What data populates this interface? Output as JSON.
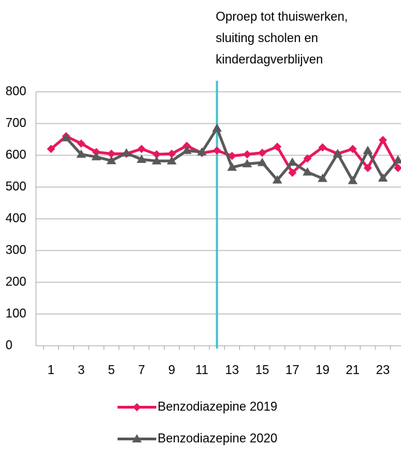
{
  "chart_data": {
    "type": "line",
    "annotation": {
      "lines": [
        "Oproep tot thuiswerken,",
        "sluiting scholen en",
        "kinderdagverblijven"
      ],
      "x": 12,
      "color": "#3fc1cf"
    },
    "x": [
      1,
      2,
      3,
      4,
      5,
      6,
      7,
      8,
      9,
      10,
      11,
      12,
      13,
      14,
      15,
      16,
      17,
      18,
      19,
      20,
      21,
      22,
      23,
      24
    ],
    "xlim": [
      0,
      24.2
    ],
    "xticks": [
      1,
      3,
      5,
      7,
      9,
      11,
      13,
      15,
      17,
      19,
      21,
      23
    ],
    "ylim": [
      0,
      800
    ],
    "yticks": [
      0,
      100,
      200,
      300,
      400,
      500,
      600,
      700,
      800
    ],
    "grid": true,
    "legend": "bottom",
    "series": [
      {
        "name": "Benzodiazepine 2019",
        "color": "#e8175d",
        "marker": "diamond",
        "values": [
          620,
          660,
          637,
          610,
          605,
          605,
          620,
          603,
          605,
          630,
          607,
          615,
          598,
          603,
          608,
          627,
          545,
          590,
          625,
          605,
          620,
          560,
          648,
          560
        ]
      },
      {
        "name": "Benzodiazepine 2020",
        "color": "#595959",
        "marker": "triangle",
        "values": [
          null,
          655,
          603,
          595,
          583,
          607,
          587,
          582,
          582,
          615,
          610,
          685,
          562,
          573,
          577,
          522,
          578,
          547,
          527,
          605,
          520,
          615,
          528,
          585
        ]
      }
    ]
  }
}
